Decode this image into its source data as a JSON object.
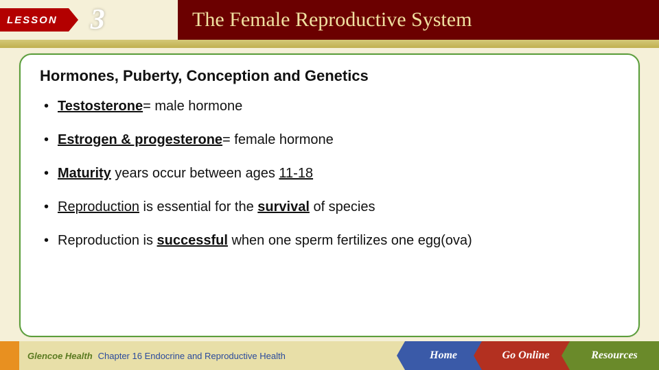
{
  "header": {
    "lesson_label": "LESSON",
    "lesson_number": "3",
    "title": "The Female Reproductive System"
  },
  "content": {
    "section_title": "Hormones, Puberty, Conception and Genetics",
    "bullets": [
      {
        "term": "Testosterone",
        "rest": "= male hormone",
        "term_underline": true,
        "term_bold": true
      },
      {
        "term": "Estrogen & progesterone",
        "rest": "= female hormone",
        "term_underline": true,
        "term_bold": true
      },
      {
        "pre": "",
        "term": "Maturity",
        "mid": " years occur between ages ",
        "tail": "11-18",
        "term_underline": true,
        "term_bold": true,
        "tail_underline": true
      },
      {
        "term": "Reproduction",
        "mid": " is essential for the ",
        "key": "survival",
        "rest": " of species",
        "term_underline": true,
        "key_underline": true,
        "key_bold": true
      },
      {
        "pre": "Reproduction is ",
        "term": "successful",
        "rest": " when one sperm fertilizes one egg(ova)",
        "term_underline": true,
        "term_bold": true
      }
    ]
  },
  "footer": {
    "brand": "Glencoe Health",
    "chapter": "Chapter 16 Endocrine and Reproductive Health",
    "buttons": {
      "home": "Home",
      "online": "Go Online",
      "resources": "Resources"
    }
  },
  "colors": {
    "header_dark": "#6b0000",
    "lesson_tab": "#b30000",
    "title_text": "#f0e0a0",
    "page_bg": "#f5f0d8",
    "frame_border": "#5a9e3a",
    "btn_home": "#3a5aa8",
    "btn_online": "#b33020",
    "btn_res": "#6a8a2a"
  }
}
